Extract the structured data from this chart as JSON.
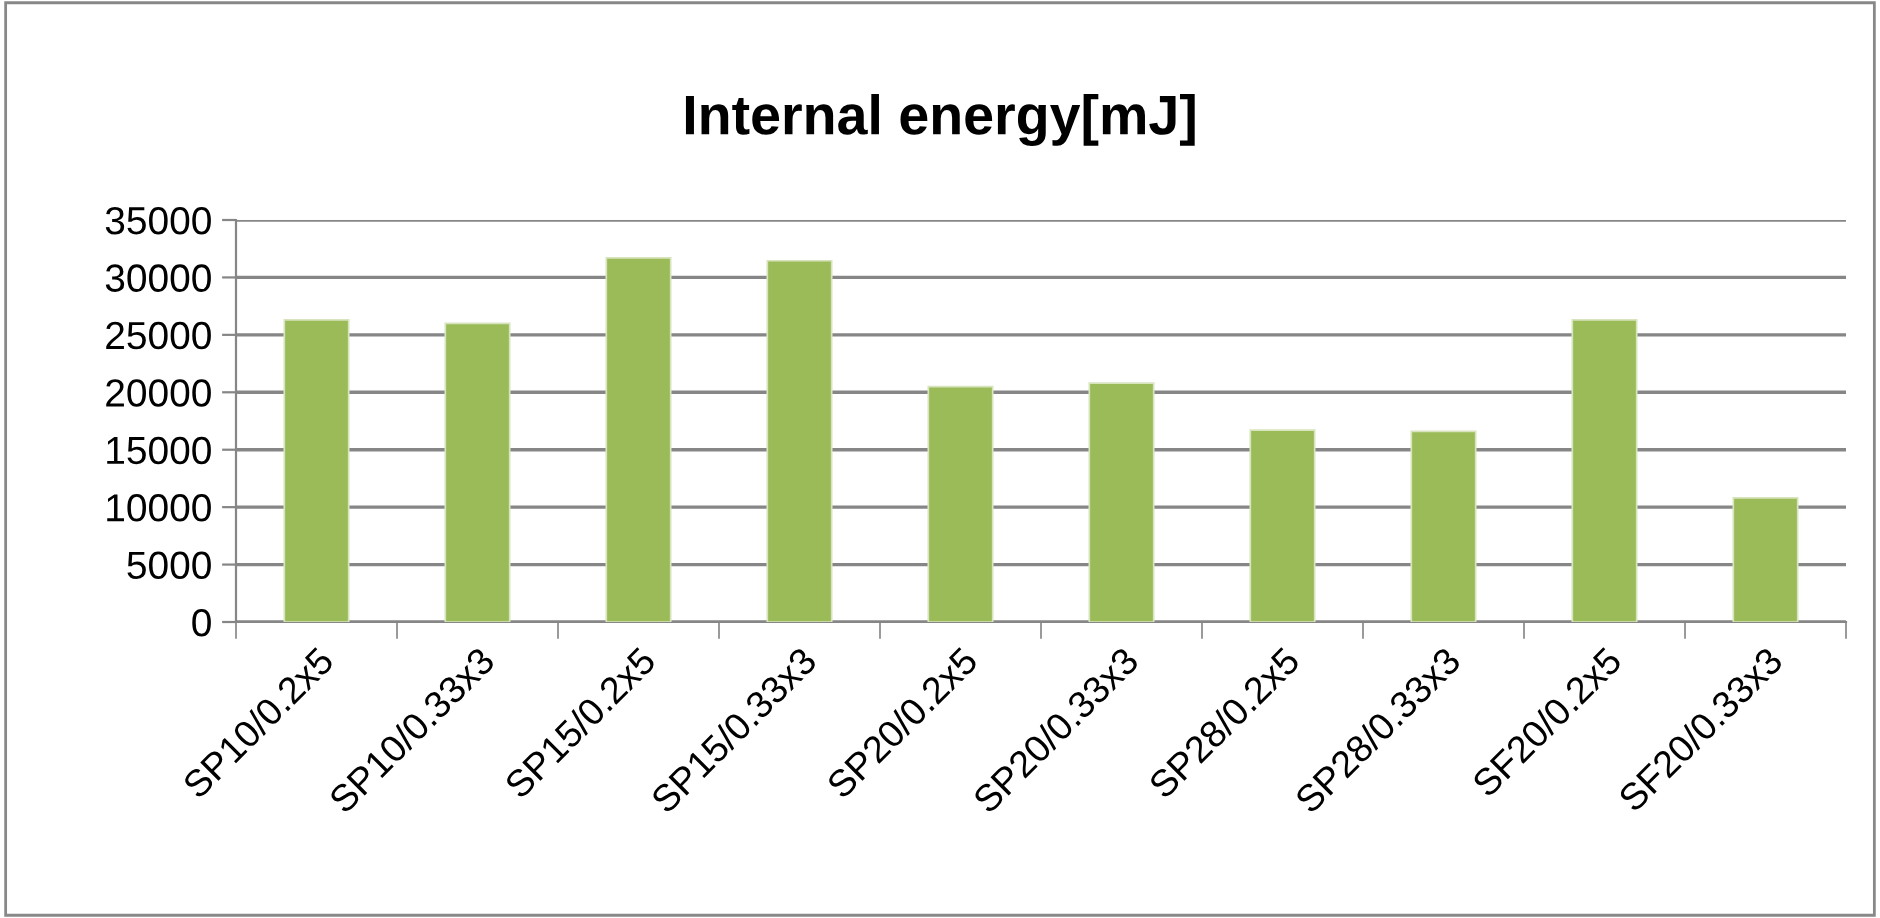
{
  "chart_data": {
    "type": "bar",
    "title": "Internal energy[mJ]",
    "categories": [
      "SP10/0.2x5",
      "SP10/0.33x3",
      "SP15/0.2x5",
      "SP15/0.33x3",
      "SP20/0.2x5",
      "SP20/0.33x3",
      "SP28/0.2x5",
      "SP28/0.33x3",
      "SF20/0.2x5",
      "SF20/0.33x3"
    ],
    "values": [
      26300,
      26000,
      31700,
      31450,
      20500,
      20800,
      16700,
      16600,
      26300,
      10800
    ],
    "color": "#9bbb59",
    "ylim": [
      0,
      35000
    ],
    "yticks": [
      0,
      5000,
      10000,
      15000,
      20000,
      25000,
      30000,
      35000
    ],
    "grid": "y"
  }
}
